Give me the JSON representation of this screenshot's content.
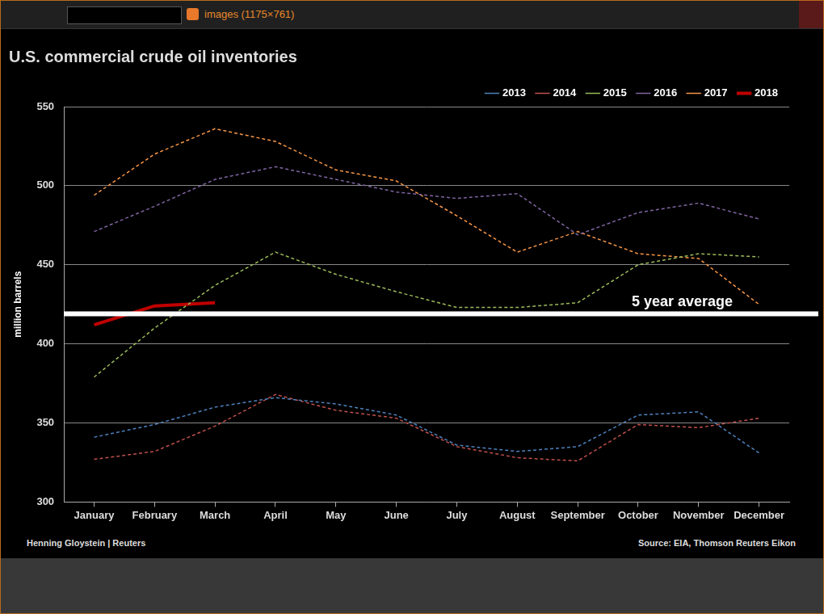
{
  "window": {
    "title": "images (1175×761)"
  },
  "chart_data": {
    "type": "line",
    "title": "U.S. commercial crude oil inventories",
    "y_label": "million barrels",
    "credit": "Henning Gloystein | Reuters",
    "source": "Source: EIA, Thomson Reuters Eikon",
    "categories": [
      "January",
      "February",
      "March",
      "April",
      "May",
      "June",
      "July",
      "August",
      "September",
      "October",
      "November",
      "December"
    ],
    "series": [
      {
        "name": "2013",
        "color": "#4f81bd",
        "line_style": "dashed",
        "values": [
          341,
          349,
          360,
          366,
          362,
          355,
          336,
          332,
          335,
          355,
          357,
          331
        ]
      },
      {
        "name": "2014",
        "color": "#c0504d",
        "line_style": "dashed",
        "values": [
          327,
          332,
          348,
          368,
          358,
          353,
          335,
          328,
          326,
          349,
          347,
          353
        ]
      },
      {
        "name": "2015",
        "color": "#9bbb59",
        "line_style": "dashed",
        "values": [
          379,
          410,
          437,
          458,
          444,
          433,
          423,
          423,
          426,
          450,
          457,
          455
        ]
      },
      {
        "name": "2016",
        "color": "#8064a2",
        "line_style": "dashed",
        "values": [
          471,
          487,
          504,
          512,
          504,
          496,
          492,
          495,
          469,
          483,
          489,
          479
        ]
      },
      {
        "name": "2017",
        "color": "#f79646",
        "line_style": "dashed",
        "values": [
          494,
          520,
          536,
          528,
          510,
          503,
          481,
          458,
          471,
          457,
          454,
          425
        ]
      },
      {
        "name": "2018",
        "color": "#c00000",
        "line_style": "solid",
        "values": [
          412,
          424,
          426,
          null,
          null,
          null,
          null,
          null,
          null,
          null,
          null,
          null
        ]
      }
    ],
    "annotations": [
      {
        "text": "5 year average",
        "y": 419
      }
    ],
    "ylim": [
      300,
      550
    ],
    "yticks": [
      300,
      350,
      400,
      450,
      500,
      550
    ],
    "grid": true,
    "legend": "top-right"
  }
}
